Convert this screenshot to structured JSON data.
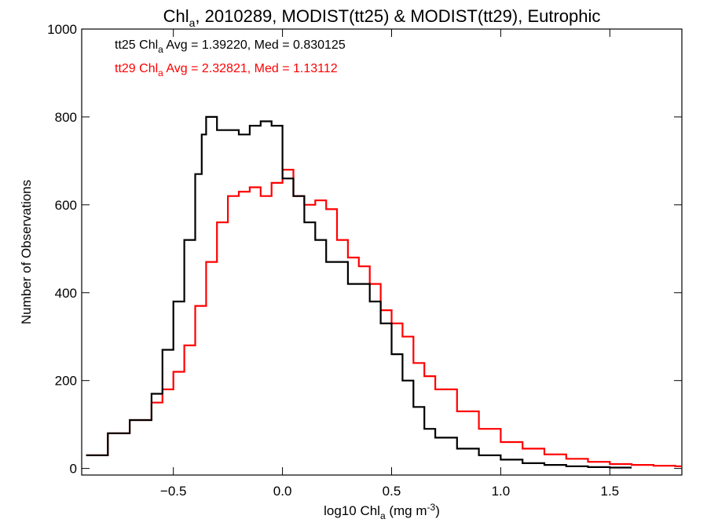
{
  "chart_data": {
    "type": "line",
    "step": true,
    "title_main": "Chl",
    "title_sub": "a",
    "title_rest": ", 2010289, MODIST(tt25) & MODIST(tt29), Eutrophic",
    "xlabel_main": "log10 Chl",
    "xlabel_sub": "a",
    "xlabel_rest": " (mg m",
    "xlabel_sup": "-3",
    "xlabel_end": ")",
    "ylabel": "Number of Observations",
    "xlim": [
      -0.92,
      1.83
    ],
    "ylim": [
      -15,
      1000
    ],
    "xticks": [
      -0.5,
      0.0,
      0.5,
      1.0,
      1.5
    ],
    "xtick_labels": [
      "−0.5",
      "0.0",
      "0.5",
      "1.0",
      "1.5"
    ],
    "yticks": [
      0,
      200,
      400,
      600,
      800,
      1000
    ],
    "ytick_labels": [
      "0",
      "200",
      "400",
      "600",
      "800",
      "1000"
    ],
    "grid": false,
    "series": [
      {
        "name": "tt25",
        "color": "#000000",
        "stats_prefix": "tt25 Chl",
        "stats_sub": "a",
        "stats_rest": " Avg = 1.39220, Med = 0.830125",
        "x": [
          -0.9,
          -0.8,
          -0.7,
          -0.6,
          -0.55,
          -0.5,
          -0.45,
          -0.4,
          -0.37,
          -0.35,
          -0.3,
          -0.25,
          -0.2,
          -0.15,
          -0.1,
          -0.05,
          0.0,
          0.05,
          0.1,
          0.15,
          0.2,
          0.3,
          0.4,
          0.45,
          0.5,
          0.55,
          0.6,
          0.65,
          0.7,
          0.8,
          0.9,
          1.0,
          1.1,
          1.2,
          1.3,
          1.4,
          1.5
        ],
        "y": [
          30,
          80,
          110,
          170,
          270,
          380,
          520,
          670,
          760,
          800,
          770,
          770,
          760,
          780,
          790,
          780,
          660,
          620,
          560,
          520,
          470,
          420,
          380,
          330,
          260,
          200,
          140,
          90,
          70,
          45,
          30,
          20,
          12,
          8,
          5,
          3,
          2
        ]
      },
      {
        "name": "tt29",
        "color": "#ff0000",
        "stats_prefix": "tt29 Chl",
        "stats_sub": "a",
        "stats_rest": " Avg = 2.32821, Med = 1.13112",
        "x": [
          -0.9,
          -0.8,
          -0.7,
          -0.6,
          -0.55,
          -0.5,
          -0.45,
          -0.4,
          -0.35,
          -0.3,
          -0.25,
          -0.2,
          -0.15,
          -0.1,
          -0.05,
          0.0,
          0.05,
          0.1,
          0.15,
          0.2,
          0.25,
          0.3,
          0.35,
          0.4,
          0.45,
          0.5,
          0.55,
          0.6,
          0.65,
          0.7,
          0.8,
          0.9,
          1.0,
          1.1,
          1.2,
          1.3,
          1.4,
          1.5,
          1.6,
          1.7,
          1.8
        ],
        "y": [
          30,
          80,
          110,
          150,
          180,
          220,
          280,
          370,
          470,
          560,
          620,
          630,
          640,
          620,
          650,
          680,
          620,
          600,
          610,
          590,
          520,
          480,
          460,
          420,
          360,
          330,
          300,
          240,
          210,
          180,
          130,
          90,
          60,
          45,
          32,
          22,
          15,
          10,
          8,
          6,
          5
        ]
      }
    ]
  }
}
